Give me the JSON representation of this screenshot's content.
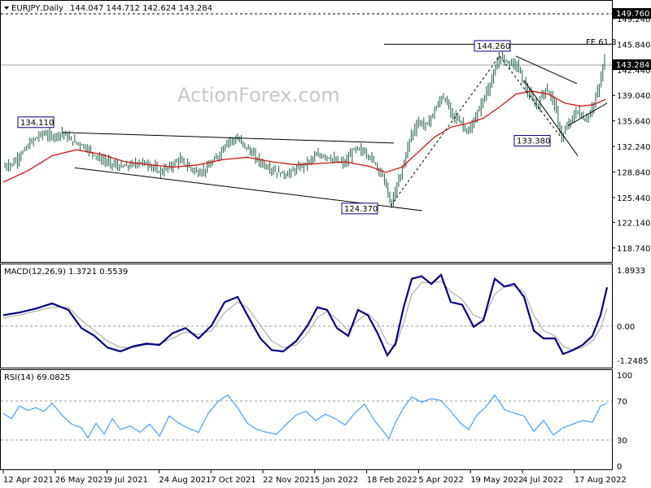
{
  "symbol_header": "EURJPY,Daily",
  "ohlc_text": "144.047 144.712 142.624 143.284",
  "watermark": "ActionForex.com",
  "price_panel": {
    "ylim": [
      117.0,
      151.5
    ],
    "y_ticks": [
      "118.740",
      "122.140",
      "125.440",
      "128.840",
      "132.240",
      "135.640",
      "139.040",
      "142.440",
      "145.840",
      "149.240"
    ],
    "current_price_label": "143.284",
    "top_level_label": "149.760",
    "fe_label": "FE 61.8",
    "fe_level": 145.84,
    "annotations": [
      {
        "text": "134.110",
        "price": 134.11
      },
      {
        "text": "124.370",
        "price": 124.37
      },
      {
        "text": "144.260",
        "price": 144.26
      },
      {
        "text": "133.380",
        "price": 133.38
      }
    ]
  },
  "macd_panel": {
    "title": "MACD(12,26,9) 1.3721 0.5539",
    "y_ticks": [
      "1.8933",
      "0.00",
      "-1.2485"
    ],
    "ylim": [
      -1.6,
      2.1
    ]
  },
  "rsi_panel": {
    "title": "RSI(14) 69.0825",
    "y_ticks": [
      "100",
      "70",
      "30",
      "0"
    ],
    "ylim": [
      0,
      100
    ]
  },
  "x_axis_labels": [
    "12 Apr 2021",
    "26 May 2021",
    "9 Jul 2021",
    "24 Aug 2021",
    "7 Oct 2021",
    "22 Nov 2021",
    "5 Jan 2022",
    "18 Feb 2022",
    "5 Apr 2022",
    "19 May 2022",
    "4 Jul 2022",
    "17 Aug 2022"
  ],
  "colors": {
    "candle_body": "#2e7d5b",
    "ma_line": "#d40000",
    "macd_line": "#00008b",
    "signal_line": "#a0a0a0",
    "rsi_line": "#1e90ff",
    "label_border": "#00008b"
  },
  "chart_data": {
    "type": "line",
    "price_path": [
      [
        0,
        129.5
      ],
      [
        12,
        130
      ],
      [
        24,
        131.5
      ],
      [
        36,
        133
      ],
      [
        48,
        134
      ],
      [
        60,
        133.5
      ],
      [
        72,
        134.11
      ],
      [
        84,
        133
      ],
      [
        96,
        132.5
      ],
      [
        108,
        131.5
      ],
      [
        120,
        130.5
      ],
      [
        132,
        130
      ],
      [
        144,
        129.5
      ],
      [
        156,
        129.7
      ],
      [
        168,
        130.2
      ],
      [
        180,
        129.8
      ],
      [
        192,
        128.8
      ],
      [
        204,
        129.5
      ],
      [
        216,
        130.5
      ],
      [
        228,
        129.5
      ],
      [
        240,
        128.7
      ],
      [
        252,
        129.5
      ],
      [
        264,
        131
      ],
      [
        276,
        133
      ],
      [
        288,
        133.2
      ],
      [
        300,
        132
      ],
      [
        312,
        130.5
      ],
      [
        324,
        129.5
      ],
      [
        336,
        128.8
      ],
      [
        348,
        128.5
      ],
      [
        360,
        129.2
      ],
      [
        372,
        130
      ],
      [
        384,
        131
      ],
      [
        396,
        131
      ],
      [
        408,
        130.3
      ],
      [
        420,
        130
      ],
      [
        432,
        132
      ],
      [
        444,
        131.5
      ],
      [
        456,
        130.2
      ],
      [
        468,
        128
      ],
      [
        476,
        124.37
      ],
      [
        484,
        127
      ],
      [
        492,
        130
      ],
      [
        500,
        133.5
      ],
      [
        510,
        135.5
      ],
      [
        520,
        135
      ],
      [
        530,
        137
      ],
      [
        540,
        139
      ],
      [
        552,
        136.5
      ],
      [
        562,
        135.5
      ],
      [
        572,
        134
      ],
      [
        582,
        136.5
      ],
      [
        592,
        139
      ],
      [
        602,
        141.5
      ],
      [
        610,
        144.26
      ],
      [
        620,
        143.5
      ],
      [
        632,
        143
      ],
      [
        644,
        139.5
      ],
      [
        656,
        137.5
      ],
      [
        666,
        140
      ],
      [
        676,
        138.5
      ],
      [
        686,
        133.38
      ],
      [
        696,
        135.5
      ],
      [
        706,
        137
      ],
      [
        716,
        135.5
      ],
      [
        726,
        138
      ],
      [
        734,
        141
      ],
      [
        740,
        144.7
      ]
    ],
    "macd": [
      [
        0,
        0.3
      ],
      [
        20,
        0.4
      ],
      [
        40,
        0.55
      ],
      [
        60,
        0.75
      ],
      [
        80,
        0.5
      ],
      [
        96,
        -0.2
      ],
      [
        112,
        -0.5
      ],
      [
        128,
        -0.95
      ],
      [
        144,
        -1.1
      ],
      [
        160,
        -0.9
      ],
      [
        176,
        -0.8
      ],
      [
        192,
        -0.85
      ],
      [
        208,
        -0.4
      ],
      [
        224,
        -0.2
      ],
      [
        240,
        -0.6
      ],
      [
        256,
        -0.1
      ],
      [
        272,
        0.8
      ],
      [
        288,
        1.0
      ],
      [
        300,
        0.3
      ],
      [
        316,
        -0.6
      ],
      [
        330,
        -1.05
      ],
      [
        344,
        -1.1
      ],
      [
        360,
        -0.7
      ],
      [
        374,
        -0.1
      ],
      [
        386,
        0.6
      ],
      [
        398,
        0.5
      ],
      [
        410,
        -0.2
      ],
      [
        424,
        -0.5
      ],
      [
        436,
        0.5
      ],
      [
        448,
        0.3
      ],
      [
        460,
        -0.4
      ],
      [
        472,
        -1.25
      ],
      [
        482,
        -0.8
      ],
      [
        492,
        0.6
      ],
      [
        502,
        1.7
      ],
      [
        514,
        1.8
      ],
      [
        526,
        1.5
      ],
      [
        538,
        1.85
      ],
      [
        550,
        0.8
      ],
      [
        564,
        0.7
      ],
      [
        578,
        -0.15
      ],
      [
        590,
        0.1
      ],
      [
        604,
        1.7
      ],
      [
        616,
        1.4
      ],
      [
        628,
        1.5
      ],
      [
        640,
        1.0
      ],
      [
        652,
        -0.3
      ],
      [
        664,
        -0.6
      ],
      [
        678,
        -0.6
      ],
      [
        688,
        -1.2
      ],
      [
        700,
        -1.05
      ],
      [
        712,
        -0.85
      ],
      [
        724,
        -0.5
      ],
      [
        734,
        0.3
      ],
      [
        742,
        1.37
      ]
    ],
    "macd_signal": [
      [
        0,
        0.2
      ],
      [
        20,
        0.3
      ],
      [
        40,
        0.45
      ],
      [
        60,
        0.6
      ],
      [
        80,
        0.6
      ],
      [
        96,
        0.1
      ],
      [
        112,
        -0.3
      ],
      [
        128,
        -0.7
      ],
      [
        144,
        -0.95
      ],
      [
        160,
        -0.95
      ],
      [
        176,
        -0.85
      ],
      [
        192,
        -0.8
      ],
      [
        208,
        -0.6
      ],
      [
        224,
        -0.35
      ],
      [
        240,
        -0.45
      ],
      [
        256,
        -0.3
      ],
      [
        272,
        0.4
      ],
      [
        288,
        0.8
      ],
      [
        300,
        0.6
      ],
      [
        316,
        -0.1
      ],
      [
        330,
        -0.7
      ],
      [
        344,
        -0.95
      ],
      [
        360,
        -0.85
      ],
      [
        374,
        -0.4
      ],
      [
        386,
        0.2
      ],
      [
        398,
        0.45
      ],
      [
        410,
        0.15
      ],
      [
        424,
        -0.3
      ],
      [
        436,
        0.1
      ],
      [
        448,
        0.35
      ],
      [
        460,
        0.0
      ],
      [
        472,
        -0.8
      ],
      [
        482,
        -0.9
      ],
      [
        492,
        0.0
      ],
      [
        502,
        1.1
      ],
      [
        514,
        1.55
      ],
      [
        526,
        1.55
      ],
      [
        538,
        1.6
      ],
      [
        550,
        1.2
      ],
      [
        564,
        0.9
      ],
      [
        578,
        0.3
      ],
      [
        590,
        0.15
      ],
      [
        604,
        1.1
      ],
      [
        616,
        1.4
      ],
      [
        628,
        1.4
      ],
      [
        640,
        1.2
      ],
      [
        652,
        0.3
      ],
      [
        664,
        -0.3
      ],
      [
        678,
        -0.5
      ],
      [
        688,
        -0.9
      ],
      [
        700,
        -1.05
      ],
      [
        712,
        -0.95
      ],
      [
        724,
        -0.7
      ],
      [
        734,
        -0.2
      ],
      [
        742,
        0.55
      ]
    ],
    "rsi": [
      [
        0,
        58
      ],
      [
        10,
        52
      ],
      [
        20,
        66
      ],
      [
        30,
        61
      ],
      [
        40,
        64
      ],
      [
        50,
        60
      ],
      [
        60,
        69
      ],
      [
        72,
        56
      ],
      [
        84,
        46
      ],
      [
        96,
        42
      ],
      [
        104,
        31
      ],
      [
        114,
        47
      ],
      [
        124,
        35
      ],
      [
        134,
        52
      ],
      [
        144,
        40
      ],
      [
        156,
        44
      ],
      [
        168,
        37
      ],
      [
        180,
        46
      ],
      [
        192,
        33
      ],
      [
        204,
        55
      ],
      [
        214,
        48
      ],
      [
        226,
        42
      ],
      [
        240,
        37
      ],
      [
        252,
        58
      ],
      [
        264,
        71
      ],
      [
        276,
        78
      ],
      [
        288,
        64
      ],
      [
        300,
        47
      ],
      [
        312,
        40
      ],
      [
        324,
        37
      ],
      [
        336,
        35
      ],
      [
        348,
        46
      ],
      [
        360,
        56
      ],
      [
        372,
        60
      ],
      [
        384,
        50
      ],
      [
        396,
        57
      ],
      [
        408,
        52
      ],
      [
        420,
        45
      ],
      [
        432,
        58
      ],
      [
        444,
        68
      ],
      [
        456,
        50
      ],
      [
        468,
        37
      ],
      [
        474,
        30
      ],
      [
        482,
        48
      ],
      [
        492,
        64
      ],
      [
        502,
        76
      ],
      [
        514,
        70
      ],
      [
        526,
        74
      ],
      [
        538,
        72
      ],
      [
        550,
        60
      ],
      [
        562,
        47
      ],
      [
        572,
        40
      ],
      [
        582,
        56
      ],
      [
        592,
        64
      ],
      [
        604,
        78
      ],
      [
        616,
        62
      ],
      [
        628,
        58
      ],
      [
        640,
        55
      ],
      [
        652,
        38
      ],
      [
        664,
        50
      ],
      [
        676,
        34
      ],
      [
        688,
        42
      ],
      [
        700,
        46
      ],
      [
        712,
        50
      ],
      [
        724,
        48
      ],
      [
        734,
        66
      ],
      [
        742,
        69
      ]
    ],
    "ma": [
      [
        0,
        127.5
      ],
      [
        30,
        129
      ],
      [
        60,
        131
      ],
      [
        90,
        131.8
      ],
      [
        120,
        131.2
      ],
      [
        150,
        130.2
      ],
      [
        180,
        129.8
      ],
      [
        210,
        129.5
      ],
      [
        240,
        129.8
      ],
      [
        270,
        130.5
      ],
      [
        300,
        130.8
      ],
      [
        330,
        130.2
      ],
      [
        360,
        129.8
      ],
      [
        390,
        130
      ],
      [
        420,
        130.2
      ],
      [
        450,
        129.6
      ],
      [
        470,
        128.8
      ],
      [
        490,
        129.5
      ],
      [
        510,
        131.5
      ],
      [
        530,
        133.5
      ],
      [
        550,
        134.8
      ],
      [
        570,
        135.3
      ],
      [
        590,
        136
      ],
      [
        610,
        137.5
      ],
      [
        630,
        139.2
      ],
      [
        650,
        139.6
      ],
      [
        670,
        139.2
      ],
      [
        690,
        138
      ],
      [
        710,
        137.6
      ],
      [
        725,
        137.8
      ],
      [
        740,
        138.5
      ]
    ],
    "trendlines": [
      [
        [
          72,
          134.11
        ],
        [
          480,
          132.7
        ]
      ],
      [
        [
          88,
          129.4
        ],
        [
          515,
          123.7
        ]
      ],
      [
        [
          476,
          124.37
        ],
        [
          610,
          144.26
        ]
      ],
      [
        [
          630,
          144.26
        ],
        [
          705,
          140.6
        ]
      ],
      [
        [
          640,
          141.0
        ],
        [
          706,
          131.0
        ]
      ],
      [
        [
          610,
          144.26
        ],
        [
          686,
          133.38
        ]
      ],
      [
        [
          694,
          135.0
        ],
        [
          742,
          138.0
        ]
      ]
    ]
  }
}
